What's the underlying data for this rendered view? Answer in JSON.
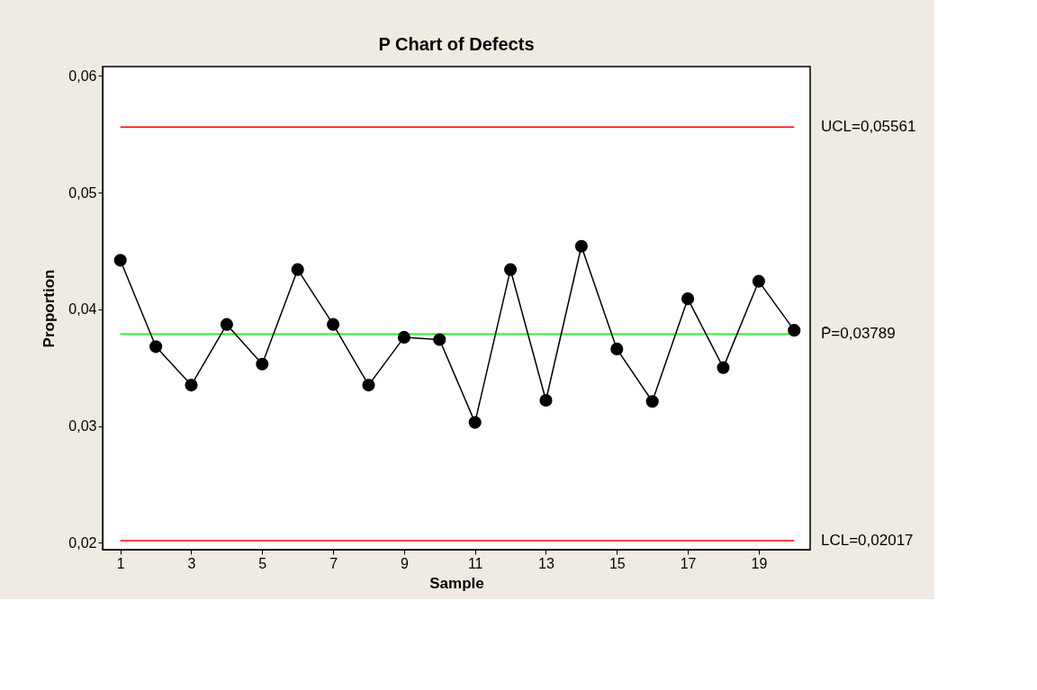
{
  "chart_data": {
    "type": "line",
    "title": "P Chart of Defects",
    "xlabel": "Sample",
    "ylabel": "Proportion",
    "x": [
      1,
      2,
      3,
      4,
      5,
      6,
      7,
      8,
      9,
      10,
      11,
      12,
      13,
      14,
      15,
      16,
      17,
      18,
      19,
      20
    ],
    "series": [
      {
        "color": "#000000",
        "values": [
          0.0442,
          0.0368,
          0.0335,
          0.0387,
          0.0353,
          0.0434,
          0.0387,
          0.0335,
          0.0376,
          0.0374,
          0.0303,
          0.0434,
          0.0322,
          0.0454,
          0.0366,
          0.0321,
          0.0409,
          0.035,
          0.0424,
          0.0382
        ]
      }
    ],
    "xlim": [
      0.5,
      20.45
    ],
    "xticks": [
      1,
      3,
      5,
      7,
      9,
      11,
      13,
      15,
      17,
      19
    ],
    "ylim": [
      0.0194,
      0.0608
    ],
    "yticks": [
      {
        "value": 0.02,
        "label": "0,02"
      },
      {
        "value": 0.03,
        "label": "0,03"
      },
      {
        "value": 0.04,
        "label": "0,04"
      },
      {
        "value": 0.05,
        "label": "0,05"
      },
      {
        "value": 0.06,
        "label": "0,06"
      }
    ],
    "ref_lines": [
      {
        "axis": "y",
        "value": 0.05561,
        "label": "UCL=0,05561",
        "color": "#ff0000"
      },
      {
        "axis": "y",
        "value": 0.03789,
        "label": "P̄=0,03789",
        "color": "#00ff00"
      },
      {
        "axis": "y",
        "value": 0.02017,
        "label": "LCL=0,02017",
        "color": "#ff0000"
      }
    ],
    "marker": "circle",
    "line_style": "solid",
    "grid": false
  }
}
